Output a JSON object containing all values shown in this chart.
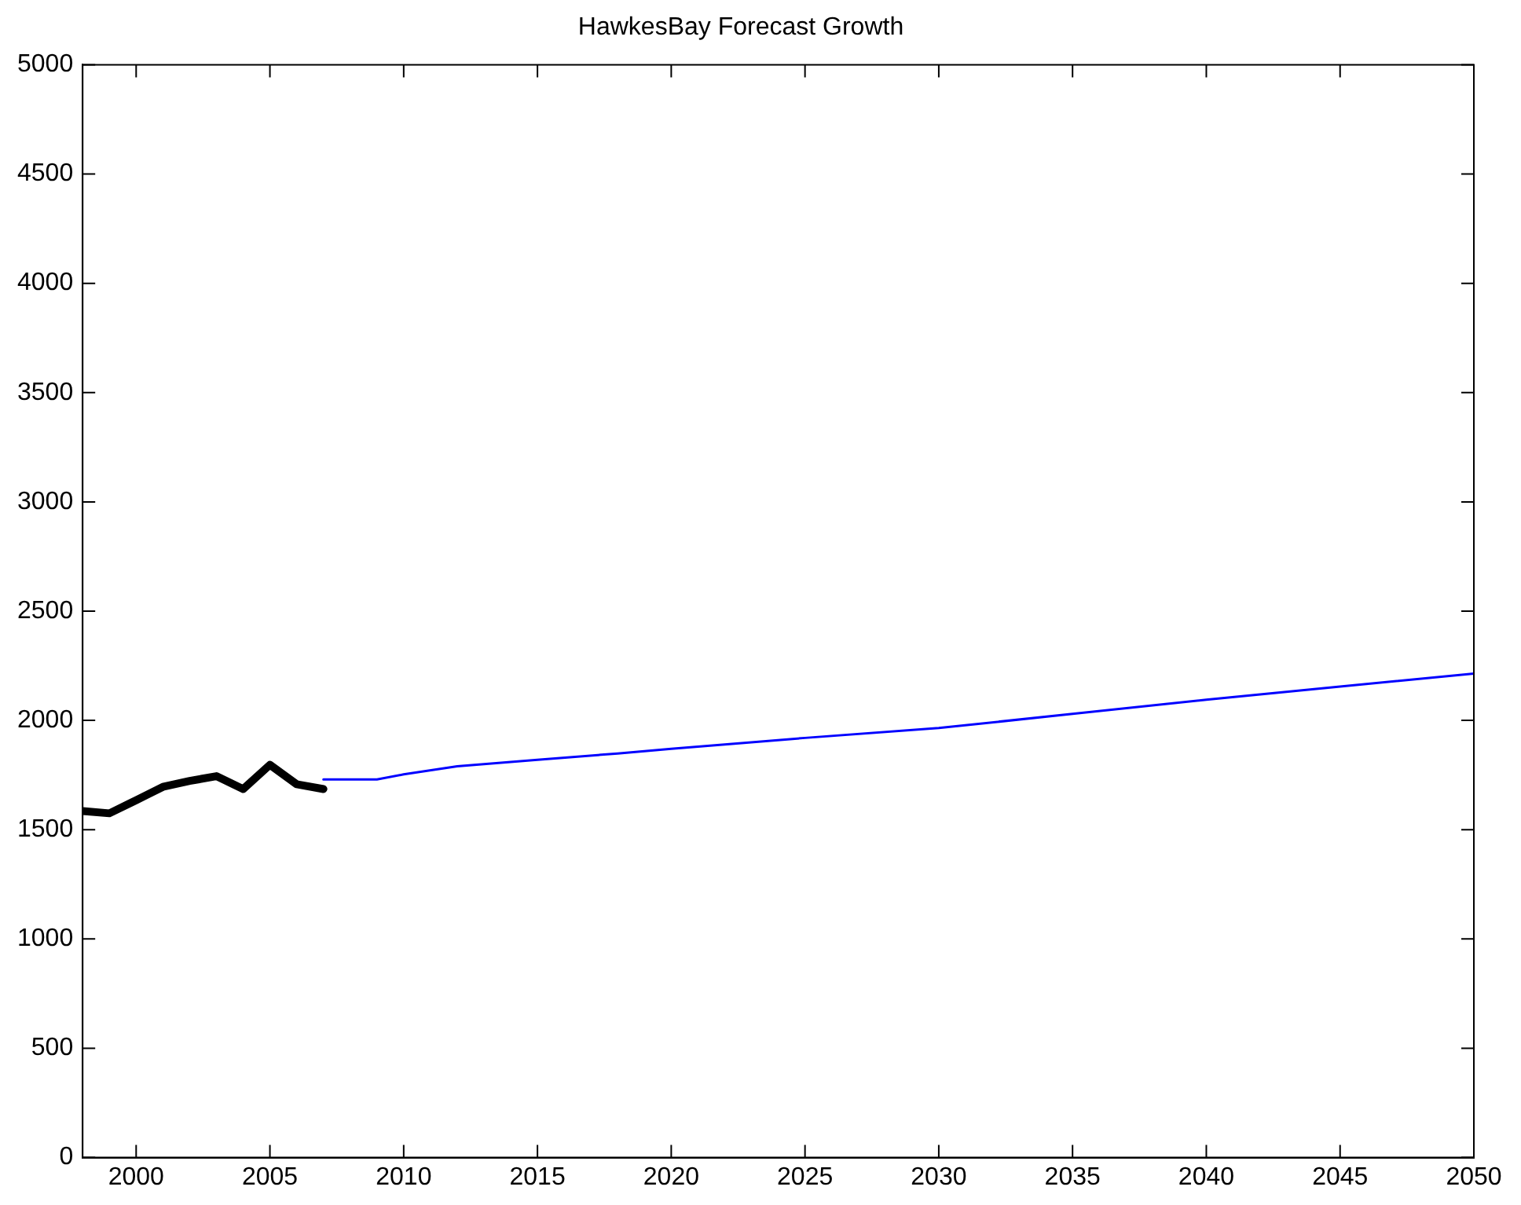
{
  "chart_data": {
    "type": "line",
    "title": "HawkesBay Forecast Growth",
    "xlim": [
      1998,
      2050
    ],
    "xticks": [
      2000,
      2005,
      2010,
      2015,
      2020,
      2025,
      2030,
      2035,
      2040,
      2045,
      2050
    ],
    "ylim": [
      0,
      5000
    ],
    "yticks": [
      0,
      500,
      1000,
      1500,
      2000,
      2500,
      3000,
      3500,
      4000,
      4500,
      5000
    ],
    "grid": false,
    "legend": false,
    "marker": "none",
    "line_style": "solid",
    "series": [
      {
        "color": "#000000",
        "x": [
          1998,
          1999,
          2000,
          2001,
          2002,
          2003,
          2004,
          2005,
          2006,
          2007
        ],
        "values": [
          1585,
          1575,
          1635,
          1696,
          1723,
          1745,
          1686,
          1797,
          1708,
          1686
        ]
      },
      {
        "color": "#0000ff",
        "x": [
          2007,
          2009,
          2010,
          2012,
          2015,
          2018,
          2020,
          2025,
          2030,
          2035,
          2040,
          2045,
          2050
        ],
        "values": [
          1730,
          1730,
          1753,
          1790,
          1820,
          1849,
          1870,
          1920,
          1965,
          2030,
          2095,
          2155,
          2214
        ]
      }
    ]
  }
}
